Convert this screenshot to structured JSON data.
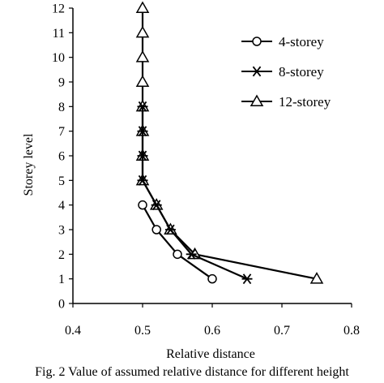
{
  "chart_data": {
    "type": "line",
    "title": "",
    "xlabel": "Relative distance",
    "ylabel": "Storey level",
    "xlim": [
      0.4,
      0.8
    ],
    "ylim": [
      0,
      12
    ],
    "xticks": [
      "0.4",
      "0.5",
      "0.6",
      "0.7",
      "0.8"
    ],
    "yticks": [
      "0",
      "1",
      "2",
      "3",
      "4",
      "5",
      "6",
      "7",
      "8",
      "9",
      "10",
      "11",
      "12"
    ],
    "grid": false,
    "legend_position": "top-right",
    "series": [
      {
        "name": "4-storey",
        "marker": "circle",
        "points": [
          {
            "x": 0.6,
            "y": 1
          },
          {
            "x": 0.55,
            "y": 2
          },
          {
            "x": 0.52,
            "y": 3
          },
          {
            "x": 0.5,
            "y": 4
          }
        ]
      },
      {
        "name": "8-storey",
        "marker": "star",
        "points": [
          {
            "x": 0.65,
            "y": 1
          },
          {
            "x": 0.57,
            "y": 2
          },
          {
            "x": 0.54,
            "y": 3
          },
          {
            "x": 0.52,
            "y": 4
          },
          {
            "x": 0.5,
            "y": 5
          },
          {
            "x": 0.5,
            "y": 6
          },
          {
            "x": 0.5,
            "y": 7
          },
          {
            "x": 0.5,
            "y": 8
          }
        ]
      },
      {
        "name": "12-storey",
        "marker": "triangle",
        "points": [
          {
            "x": 0.75,
            "y": 1
          },
          {
            "x": 0.575,
            "y": 2
          },
          {
            "x": 0.54,
            "y": 3
          },
          {
            "x": 0.52,
            "y": 4
          },
          {
            "x": 0.5,
            "y": 5
          },
          {
            "x": 0.5,
            "y": 6
          },
          {
            "x": 0.5,
            "y": 7
          },
          {
            "x": 0.5,
            "y": 8
          },
          {
            "x": 0.5,
            "y": 9
          },
          {
            "x": 0.5,
            "y": 10
          },
          {
            "x": 0.5,
            "y": 11
          },
          {
            "x": 0.5,
            "y": 12
          }
        ]
      }
    ],
    "line_color": "#000000",
    "caption": "Fig. 2 Value of assumed relative distance for different height"
  }
}
